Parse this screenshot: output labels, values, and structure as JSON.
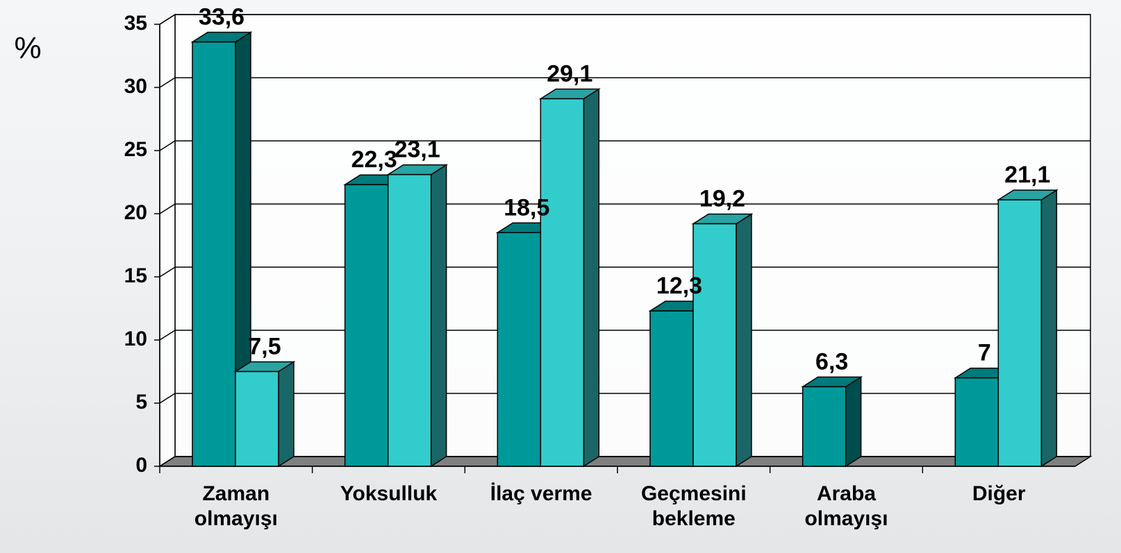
{
  "chart_data": {
    "type": "bar3d",
    "y_axis_label": "%",
    "categories": [
      "Zaman olmayışı",
      "Yoksulluk",
      "İlaç verme",
      "Geçmesini bekleme",
      "Araba olmayışı",
      "Diğer"
    ],
    "series": [
      {
        "color": "#009999",
        "values": [
          33.6,
          22.3,
          18.5,
          12.3,
          6.3,
          7
        ],
        "value_labels": [
          "33,6",
          "22,3",
          "18,5",
          "12,3",
          "6,3",
          "7"
        ]
      },
      {
        "color": "#33cccc",
        "values": [
          7.5,
          23.1,
          29.1,
          19.2,
          null,
          21.1
        ],
        "value_labels": [
          "7,5",
          "23,1",
          "29,1",
          "19,2",
          null,
          "21,1"
        ]
      }
    ],
    "ylim": [
      0,
      35
    ],
    "yticks": [
      0,
      5,
      10,
      15,
      20,
      25,
      30,
      35
    ],
    "grid": true
  }
}
